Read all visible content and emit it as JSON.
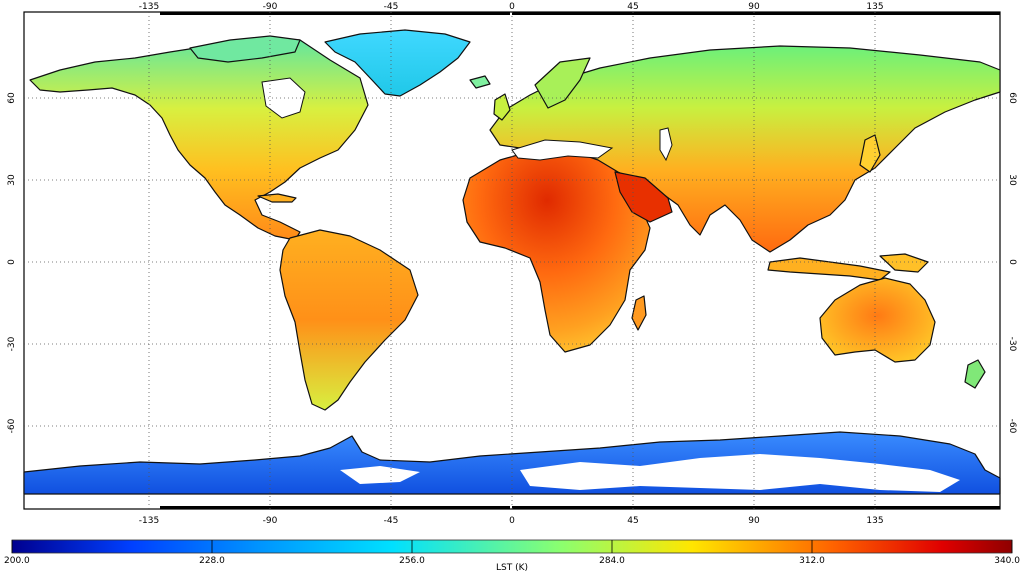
{
  "map": {
    "lon_ticks": [
      "-135",
      "-90",
      "-45",
      "0",
      "45",
      "90",
      "135"
    ],
    "lat_ticks": [
      "60",
      "30",
      "0",
      "-30",
      "-60"
    ]
  },
  "colorbar": {
    "label": "LST (K)",
    "ticks": [
      "200.0",
      "228.0",
      "256.0",
      "284.0",
      "312.0",
      "340.0"
    ],
    "colors": [
      "#00008f",
      "#0050ff",
      "#00c8ff",
      "#7dff7a",
      "#ffd200",
      "#ff5a00",
      "#8f0000"
    ]
  }
}
